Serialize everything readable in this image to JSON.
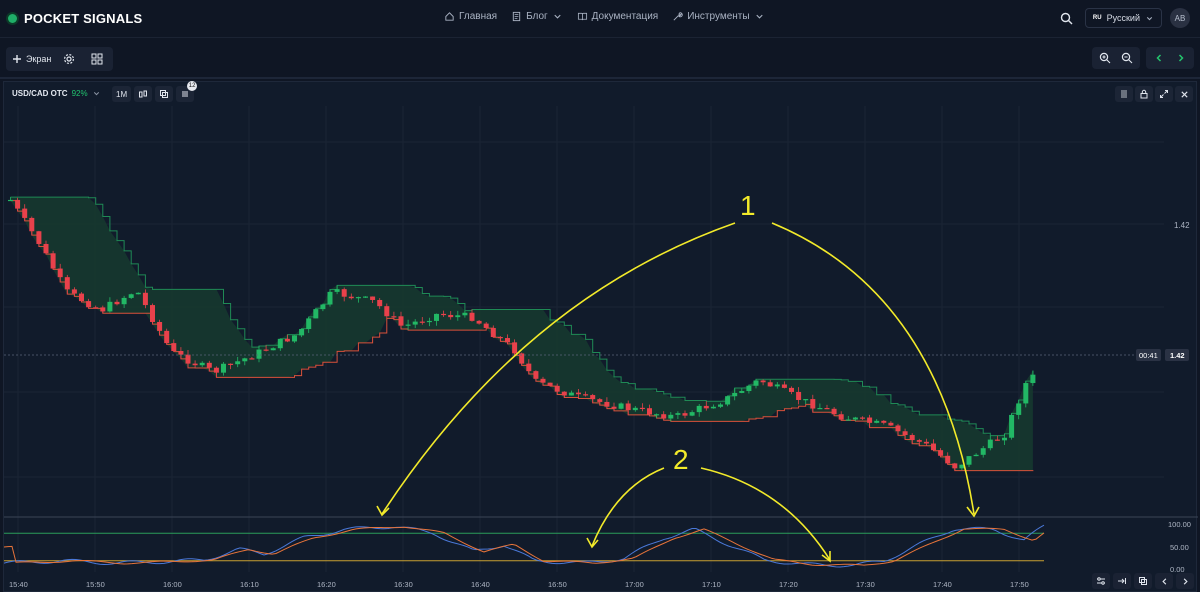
{
  "brand": {
    "name": "POCKET SIGNALS"
  },
  "nav": {
    "home": "Главная",
    "blog": "Блог",
    "docs": "Документация",
    "tools": "Инструменты"
  },
  "lang": {
    "code": "RU",
    "label": "Русский"
  },
  "user": {
    "initials": "AB"
  },
  "toolbar": {
    "screen_label": "Экран"
  },
  "chart_panel": {
    "pair": "USD/CAD OTC",
    "payout": "92%",
    "timeframe": "1M",
    "indicators_count": "12",
    "countdown": "00:41",
    "current_price_label": "1.42"
  },
  "annotations": {
    "label_1": "1",
    "label_2": "2"
  },
  "chart_data": {
    "type": "candlestick",
    "price_axis_labels": [
      "1.42",
      "1.42"
    ],
    "oscillator_axis_labels": [
      "100.00",
      "50.00",
      "0.00"
    ],
    "oscillator_levels": [
      80,
      20
    ],
    "time_labels": [
      "15:40",
      "15:50",
      "16:00",
      "16:10",
      "16:20",
      "16:30",
      "16:40",
      "16:50",
      "17:00",
      "17:10",
      "17:20",
      "17:30",
      "17:40",
      "17:50"
    ],
    "colors": {
      "bull": "#22b865",
      "bear": "#e8414b",
      "band_fill": "#16392f",
      "band_upper": "#1f8a55",
      "band_lower": "#d9513a",
      "osc_fast": "#4a78d8",
      "osc_slow": "#e8743a",
      "osc_high": "#2a9d5a",
      "osc_low": "#c8a032",
      "annotation": "#f2ea2a"
    }
  }
}
